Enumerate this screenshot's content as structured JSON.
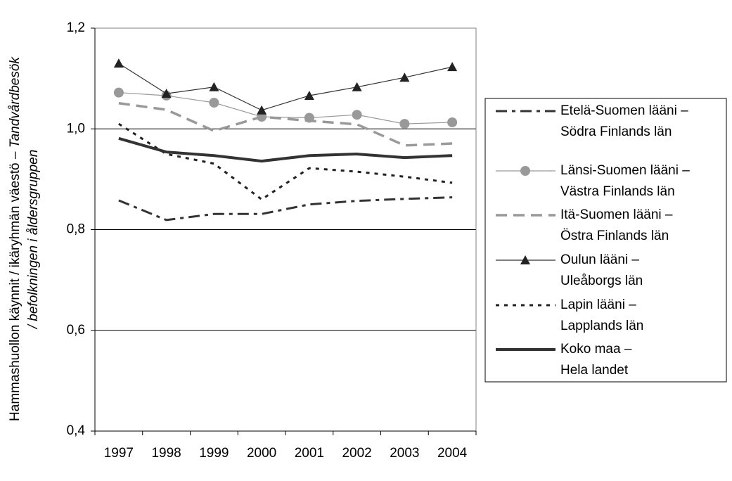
{
  "chart_data": {
    "type": "line",
    "ylabel": [
      "Hammashuollon käynnit / ikäryhmän väestö –",
      "Tandvårdbesök",
      "/ befolkningen i åldersgruppen"
    ],
    "categories": [
      "1997",
      "1998",
      "1999",
      "2000",
      "2001",
      "2002",
      "2003",
      "2004"
    ],
    "ylim": [
      0.4,
      1.2
    ],
    "yticks": [
      {
        "value": 0.4,
        "label": "0,4"
      },
      {
        "value": 0.6,
        "label": "0,6"
      },
      {
        "value": 0.8,
        "label": "0,8"
      },
      {
        "value": 1.0,
        "label": "1,0"
      },
      {
        "value": 1.2,
        "label": "1,2"
      }
    ],
    "grid": true,
    "legend": "right",
    "series": [
      {
        "name": [
          "Etelä-Suomen lääni –",
          "Södra Finlands län"
        ],
        "color": "#333333",
        "values": [
          0.858,
          0.819,
          0.831,
          0.831,
          0.85,
          0.857,
          0.861,
          0.864
        ]
      },
      {
        "name": [
          "Länsi-Suomen lääni –",
          "Västra Finlands län"
        ],
        "color": "#999999",
        "values": [
          1.072,
          1.066,
          1.052,
          1.024,
          1.022,
          1.028,
          1.01,
          1.013
        ]
      },
      {
        "name": [
          "Itä-Suomen lääni –",
          "Östra Finlands län"
        ],
        "color": "#999999",
        "values": [
          1.051,
          1.038,
          0.996,
          1.024,
          1.016,
          1.009,
          0.967,
          0.971
        ]
      },
      {
        "name": [
          "Oulun lääni –",
          "Uleåborgs län"
        ],
        "color": "#333333",
        "values": [
          1.13,
          1.07,
          1.083,
          1.037,
          1.066,
          1.083,
          1.102,
          1.123
        ]
      },
      {
        "name": [
          "Lapin lääni –",
          "Lapplands län"
        ],
        "color": "#222222",
        "values": [
          1.01,
          0.95,
          0.931,
          0.86,
          0.922,
          0.915,
          0.905,
          0.893
        ]
      },
      {
        "name": [
          "Koko maa –",
          "Hela landet"
        ],
        "color": "#333333",
        "values": [
          0.981,
          0.954,
          0.947,
          0.936,
          0.947,
          0.95,
          0.943,
          0.947
        ]
      }
    ]
  }
}
